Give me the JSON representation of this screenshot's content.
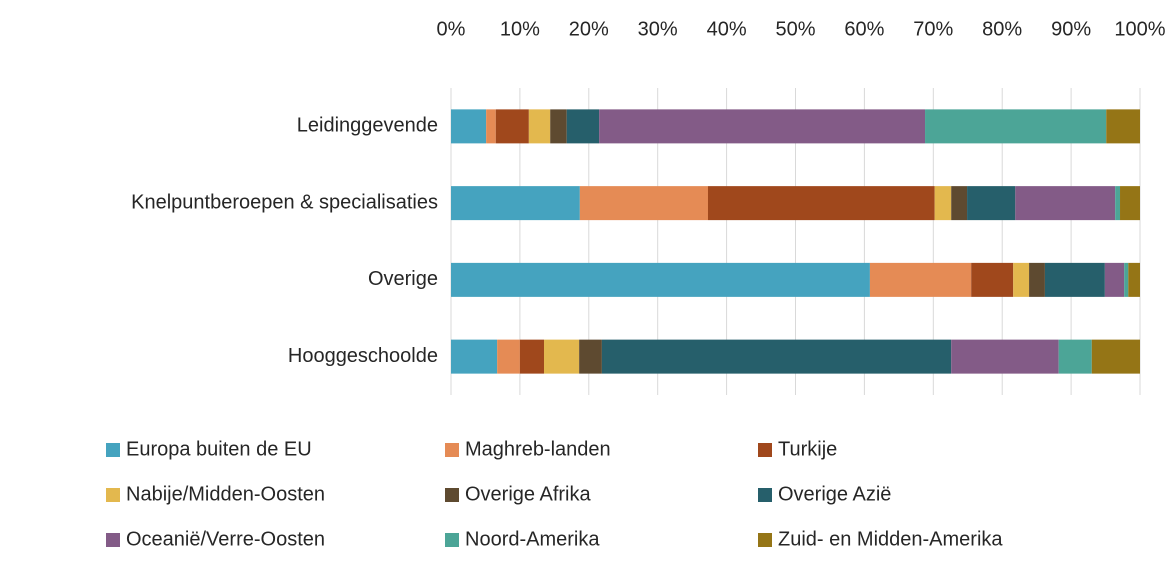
{
  "chart_data": {
    "type": "stacked_bar_horizontal",
    "categories": [
      "Leidinggevende",
      "Knelpuntberoepen & specialisaties",
      "Overige",
      "Hooggeschoolde"
    ],
    "series": [
      {
        "name": "Europa buiten de EU",
        "color": "#45a3bf",
        "values": [
          5.1,
          18.7,
          60.8,
          6.7
        ]
      },
      {
        "name": "Maghreb-landen",
        "color": "#e58b55",
        "values": [
          1.4,
          18.6,
          14.7,
          3.3
        ]
      },
      {
        "name": "Turkije",
        "color": "#a0481c",
        "values": [
          4.8,
          32.9,
          6.1,
          3.5
        ]
      },
      {
        "name": "Nabije/Midden-Oosten",
        "color": "#e3b84e",
        "values": [
          3.1,
          2.4,
          2.3,
          5.1
        ]
      },
      {
        "name": "Overige Afrika",
        "color": "#5e4a30",
        "values": [
          2.4,
          2.3,
          2.3,
          3.3
        ]
      },
      {
        "name": "Overige Azië",
        "color": "#265f6b",
        "values": [
          4.7,
          7.0,
          8.7,
          50.7
        ]
      },
      {
        "name": "Oceanië/Verre-Oosten",
        "color": "#835b87",
        "values": [
          47.3,
          14.5,
          2.8,
          15.6
        ]
      },
      {
        "name": "Noord-Amerika",
        "color": "#4ca597",
        "values": [
          26.3,
          0.7,
          0.6,
          4.8
        ]
      },
      {
        "name": "Zuid- en Midden-Amerika",
        "color": "#957516",
        "values": [
          4.9,
          2.9,
          1.7,
          7.0
        ]
      }
    ],
    "xlim": [
      0,
      100
    ],
    "xticks": [
      {
        "value": 0,
        "label": "0%"
      },
      {
        "value": 10,
        "label": "10%"
      },
      {
        "value": 20,
        "label": "20%"
      },
      {
        "value": 30,
        "label": "30%"
      },
      {
        "value": 40,
        "label": "40%"
      },
      {
        "value": 50,
        "label": "50%"
      },
      {
        "value": 60,
        "label": "60%"
      },
      {
        "value": 70,
        "label": "70%"
      },
      {
        "value": 80,
        "label": "80%"
      },
      {
        "value": 90,
        "label": "90%"
      },
      {
        "value": 100,
        "label": "100%"
      }
    ],
    "grid": true,
    "legend": "bottom"
  }
}
